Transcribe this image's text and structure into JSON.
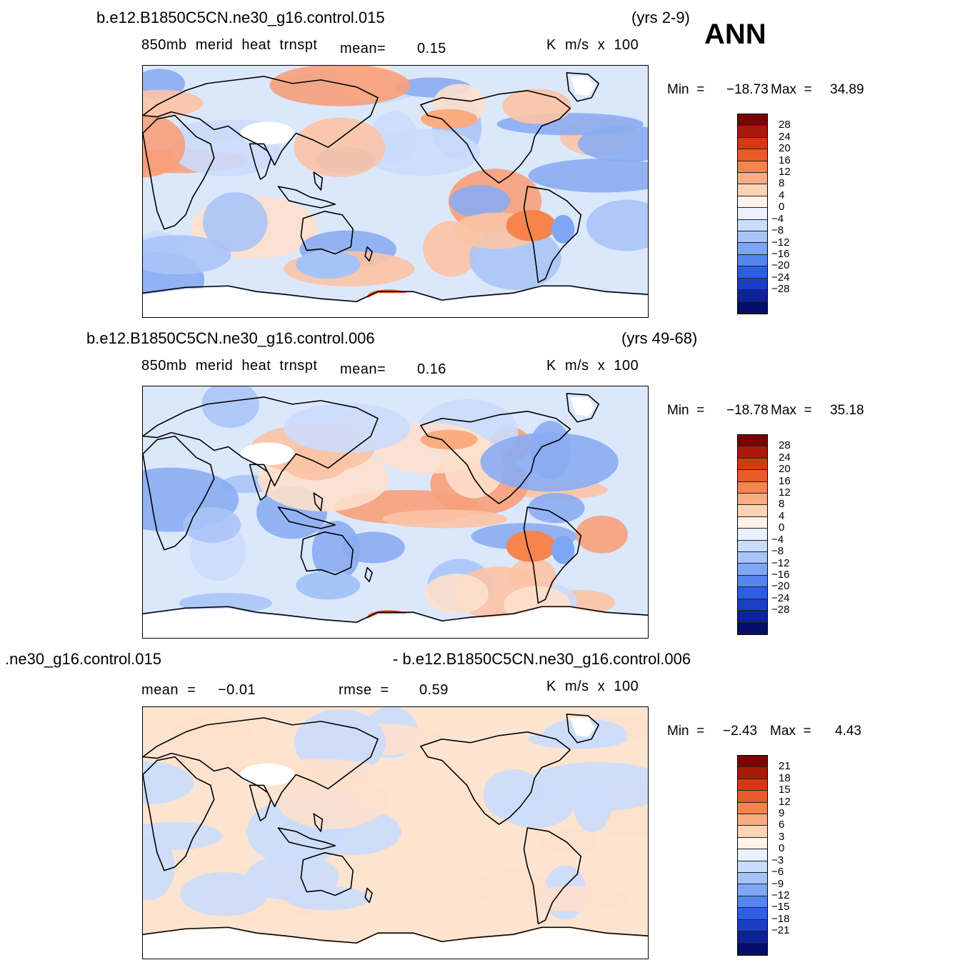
{
  "season": "ANN",
  "panels": [
    {
      "case_title": "b.e12.B1850C5CN.ne30_g16.control.015",
      "years": "(yrs 2-9)",
      "variable": "850mb  merid  heat  trnspt",
      "stat1_label": "mean=",
      "stat1_value": "0.15",
      "units": "K  m/s  x  100",
      "min_label": "Min  =",
      "min_value": "−18.73",
      "max_label": "Max  =",
      "max_value": "34.89"
    },
    {
      "case_title": "b.e12.B1850C5CN.ne30_g16.control.006",
      "years": "(yrs 49-68)",
      "variable": "850mb  merid  heat  trnspt",
      "stat1_label": "mean=",
      "stat1_value": "0.16",
      "units": "K  m/s  x  100",
      "min_label": "Min  =",
      "min_value": "−18.78",
      "max_label": "Max  =",
      "max_value": "35.18"
    },
    {
      "case_title_left": ".ne30_g16.control.015",
      "case_title_right": "- b.e12.B1850C5CN.ne30_g16.control.006",
      "stat1_label": "mean  =",
      "stat1_value": "−0.01",
      "stat2_label": "rmse  =",
      "stat2_value": "0.59",
      "units": "K  m/s  x  100",
      "min_label": "Min  =",
      "min_value": "−2.43",
      "max_label": "Max  =",
      "max_value": "4.43"
    }
  ],
  "colors": {
    "scale": [
      "#7a0403",
      "#a91a0b",
      "#d43a10",
      "#ea5a28",
      "#f6844d",
      "#fbab80",
      "#fdd3b8",
      "#fff3e8",
      "#e8f1fd",
      "#c8dcfb",
      "#a6c4f8",
      "#7fa6f4",
      "#5585ee",
      "#2d5fe3",
      "#1a3fc7",
      "#0c239c",
      "#050e6b"
    ]
  },
  "chart_data": [
    {
      "type": "heatmap",
      "title": "b.e12.B1850C5CN.ne30_g16.control.015 (yrs 2-9)",
      "subtitle": "850mb merid heat trnspt",
      "units": "K m/s x 100",
      "mean": 0.15,
      "min": -18.73,
      "max": 34.89,
      "colorbar_levels": [
        28,
        24,
        20,
        16,
        12,
        8,
        4,
        0,
        -4,
        -8,
        -12,
        -16,
        -20,
        -24,
        -28
      ]
    },
    {
      "type": "heatmap",
      "title": "b.e12.B1850C5CN.ne30_g16.control.006 (yrs 49-68)",
      "subtitle": "850mb merid heat trnspt",
      "units": "K m/s x 100",
      "mean": 0.16,
      "min": -18.78,
      "max": 35.18,
      "colorbar_levels": [
        28,
        24,
        20,
        16,
        12,
        8,
        4,
        0,
        -4,
        -8,
        -12,
        -16,
        -20,
        -24,
        -28
      ]
    },
    {
      "type": "heatmap",
      "title": ".ne30_g16.control.015 - b.e12.B1850C5CN.ne30_g16.control.006",
      "units": "K m/s x 100",
      "mean": -0.01,
      "rmse": 0.59,
      "min": -2.43,
      "max": 4.43,
      "colorbar_levels": [
        21,
        18,
        15,
        12,
        9,
        6,
        3,
        0,
        -3,
        -6,
        -9,
        -12,
        -15,
        -18,
        -21
      ]
    }
  ]
}
